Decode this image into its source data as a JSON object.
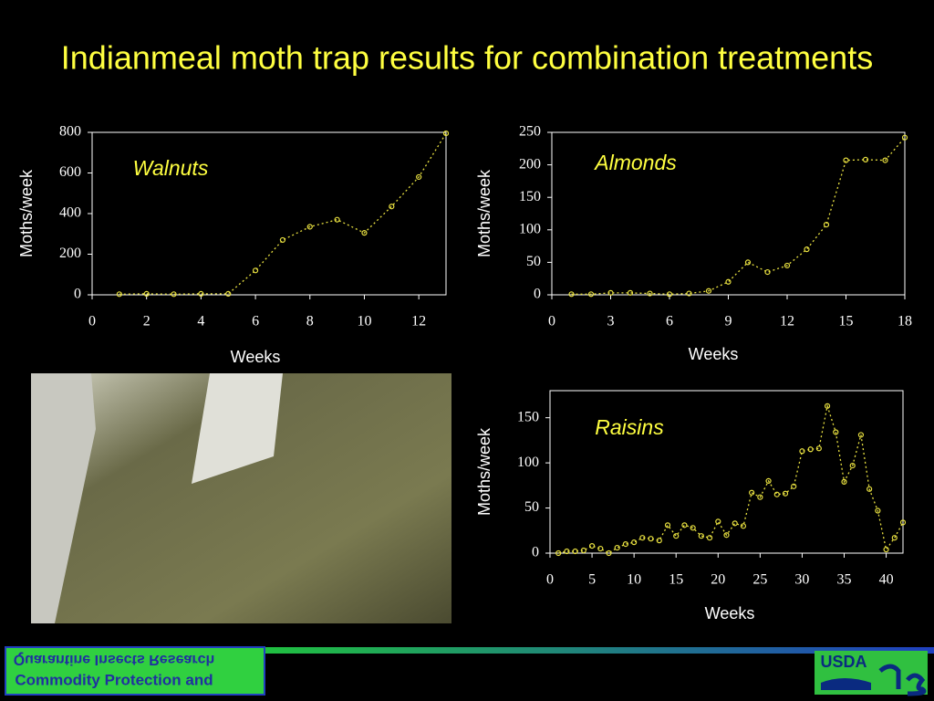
{
  "title": "Indianmeal moth trap results for combination treatments",
  "chart_data": [
    {
      "type": "line",
      "annotation": "Walnuts",
      "x_label": "Weeks",
      "y_label": "Moths/week",
      "x": [
        1,
        2,
        3,
        4,
        5,
        6,
        7,
        8,
        9,
        10,
        11,
        12,
        13
      ],
      "series": [
        {
          "color": "#e8e040",
          "values": [
            3,
            5,
            3,
            5,
            5,
            120,
            270,
            335,
            370,
            305,
            435,
            580,
            795
          ]
        }
      ],
      "xlim": [
        0,
        13
      ],
      "xticks": [
        0,
        2,
        4,
        6,
        8,
        10,
        12
      ],
      "ylim": [
        0,
        800
      ],
      "yticks": [
        0,
        200,
        400,
        600,
        800
      ]
    },
    {
      "type": "line",
      "annotation": "Almonds",
      "x_label": "Weeks",
      "y_label": "Moths/week",
      "x": [
        1,
        2,
        3,
        4,
        5,
        6,
        7,
        8,
        9,
        10,
        11,
        12,
        13,
        14,
        15,
        16,
        17,
        18
      ],
      "series": [
        {
          "color": "#e8e040",
          "values": [
            1,
            1,
            3,
            3,
            2,
            1,
            2,
            6,
            20,
            50,
            35,
            45,
            70,
            108,
            207,
            208,
            207,
            242
          ]
        }
      ],
      "xlim": [
        0,
        18
      ],
      "xticks": [
        0,
        3,
        6,
        9,
        12,
        15,
        18
      ],
      "ylim": [
        0,
        250
      ],
      "yticks": [
        0,
        50,
        100,
        150,
        200,
        250
      ]
    },
    {
      "type": "line",
      "annotation": "Raisins",
      "x_label": "Weeks",
      "y_label": "Moths/week",
      "x": [
        1,
        2,
        3,
        4,
        5,
        6,
        7,
        8,
        9,
        10,
        11,
        12,
        13,
        14,
        15,
        16,
        17,
        18,
        19,
        20,
        21,
        22,
        23,
        24,
        25,
        26,
        27,
        28,
        29,
        30,
        31,
        32,
        33,
        34,
        35,
        36,
        37,
        38,
        39,
        40,
        41,
        42
      ],
      "series": [
        {
          "color": "#e8e040",
          "values": [
            0,
            2,
            2,
            3,
            8,
            5,
            0,
            6,
            10,
            12,
            17,
            16,
            14,
            31,
            19,
            31,
            28,
            19,
            17,
            35,
            20,
            33,
            30,
            67,
            62,
            80,
            65,
            66,
            74,
            113,
            115,
            116,
            163,
            134,
            79,
            97,
            131,
            71,
            47,
            4,
            17,
            34
          ]
        }
      ],
      "xlim": [
        0,
        42
      ],
      "xticks": [
        0,
        5,
        10,
        15,
        20,
        25,
        30,
        35,
        40
      ],
      "ylim": [
        0,
        180
      ],
      "yticks": [
        0,
        50,
        100,
        150
      ]
    }
  ],
  "footer": {
    "logo_left": [
      "Commodity Protection and",
      "Quarantine Insects Research"
    ],
    "logo_right": "USDA"
  }
}
